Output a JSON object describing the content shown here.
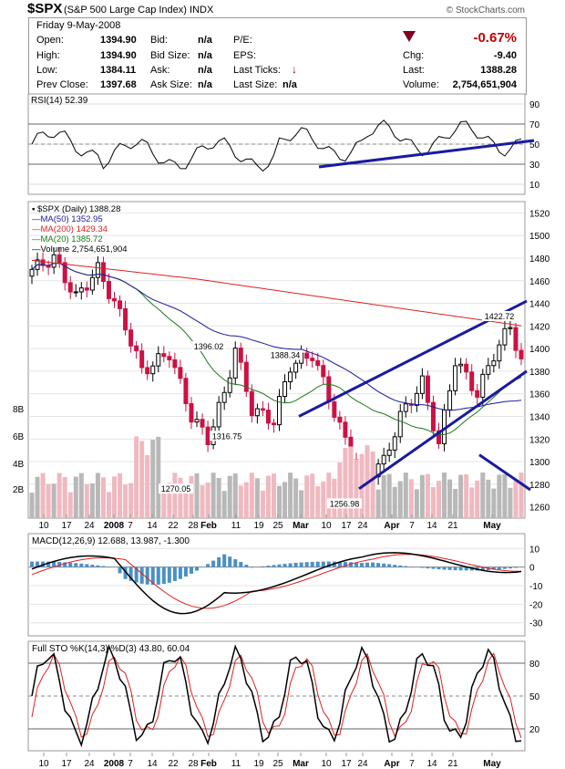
{
  "header": {
    "symbol": "$SPX",
    "name": "(S&P 500 Large Cap Index)",
    "exchange": "INDX",
    "source": "© StockCharts.com"
  },
  "quote": {
    "date": "Friday  9-May-2008",
    "open_label": "Open:",
    "open": "1394.90",
    "high_label": "High:",
    "high": "1394.90",
    "low_label": "Low:",
    "low": "1384.11",
    "prev_label": "Prev Close:",
    "prev": "1397.68",
    "bid_label": "Bid:",
    "bid": "n/a",
    "bidsize_label": "Bid Size:",
    "bidsize": "n/a",
    "ask_label": "Ask:",
    "ask": "n/a",
    "asksize_label": "Ask Size:",
    "asksize": "n/a",
    "pe_label": "P/E:",
    "eps_label": "EPS:",
    "lastticks_label": "Last Ticks:",
    "lastsize_label": "Last Size:",
    "lastsize": "n/a",
    "chg_pct": "-0.67%",
    "chg_label": "Chg:",
    "chg": "-9.40",
    "last_label": "Last:",
    "last": "1388.28",
    "volume_label": "Volume:",
    "volume": "2,754,651,904",
    "down_color": "#800020"
  },
  "chart_data": [
    {
      "panel": "RSI",
      "type": "line",
      "label": "RSI(14) 52.39",
      "yticks": [
        10,
        30,
        50,
        70,
        90
      ],
      "ylim": [
        0,
        100
      ]
    },
    {
      "panel": "Price",
      "type": "candlestick",
      "legend": [
        "$SPX (Daily) 1388.28",
        "MA(50) 1352.95",
        "MA(200) 1429.34",
        "MA(20) 1385.72",
        "Volume 2,754,651,904"
      ],
      "ylim": [
        1250,
        1530
      ],
      "yticks": [
        1260,
        1280,
        1300,
        1320,
        1340,
        1360,
        1380,
        1400,
        1420,
        1440,
        1460,
        1480,
        1500,
        1520
      ],
      "volume_ticks": [
        "2B",
        "4B",
        "6B",
        "8B"
      ],
      "annotations": [
        {
          "x": "Jan 3",
          "y": 1396.02,
          "text": "1396.02"
        },
        {
          "x": "Feb 27",
          "y": 1388.34,
          "text": "1388.34"
        },
        {
          "x": "Feb 7",
          "y": 1316.75,
          "text": "1316.75"
        },
        {
          "x": "Jan 22",
          "y": 1270.05,
          "text": "1270.05"
        },
        {
          "x": "Mar 17",
          "y": 1256.98,
          "text": "1256.98"
        },
        {
          "x": "May 2",
          "y": 1422.72,
          "text": "1422.72"
        }
      ]
    },
    {
      "panel": "MACD",
      "type": "line",
      "label": "MACD(12,26,9) 12.688, 13.987, -1.300",
      "yticks": [
        -30,
        -20,
        -10,
        0,
        10
      ],
      "ylim": [
        -37,
        18
      ]
    },
    {
      "panel": "STO",
      "type": "line",
      "label": "Full STO %K(14,3) %D(3) 43.80, 60.04",
      "yticks": [
        20,
        50,
        80
      ],
      "ylim": [
        0,
        100
      ]
    }
  ],
  "xaxis": [
    "10",
    "17",
    "24",
    "2008",
    "7",
    "14",
    "22",
    "28",
    "Feb",
    "11",
    "19",
    "25",
    "Mar",
    "10",
    "17",
    "24",
    "Apr",
    "7",
    "14",
    "21",
    "May"
  ],
  "colors": {
    "up": "#ffffff",
    "down": "#cc1144",
    "ma50": "#1a1aa0",
    "ma200": "#e02020",
    "ma20": "#1a7a1a",
    "trend": "#1a1aa0",
    "vol_up": "#b8b8b8",
    "vol_down": "#f0b8c0",
    "macd_hist": "#4a90c8"
  }
}
